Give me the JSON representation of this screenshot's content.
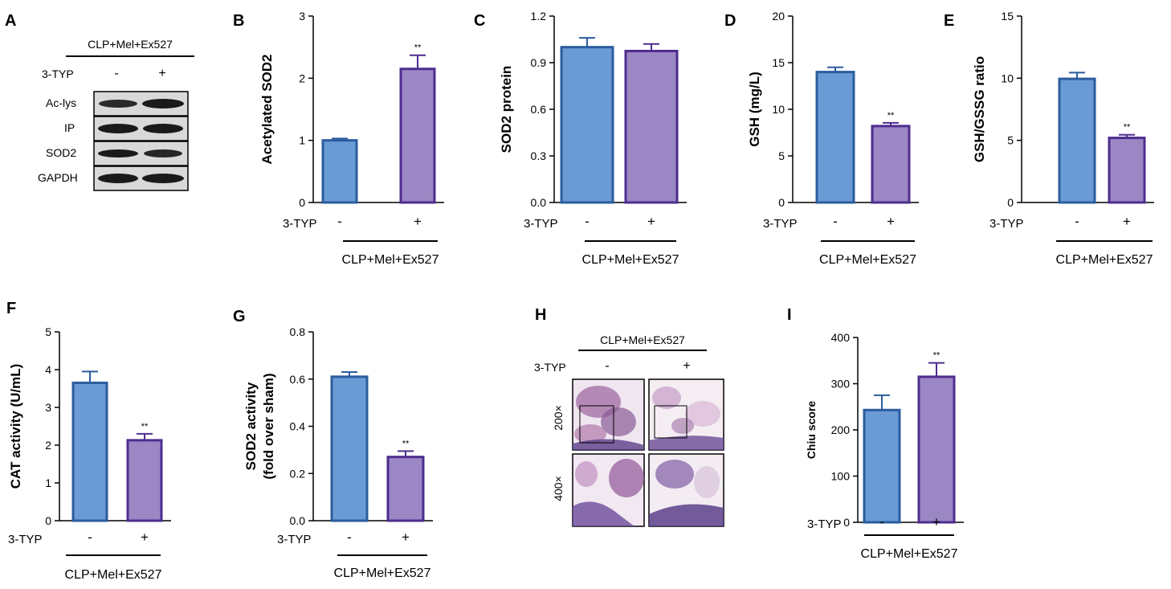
{
  "colors": {
    "bar_minus": "#6a9bd4",
    "bar_minus_edge": "#2b5c9e",
    "bar_plus": "#9b87c4",
    "bar_plus_edge": "#4e2d8f",
    "axis": "#000000"
  },
  "panel_a": {
    "letter": "A",
    "group_label": "CLP+Mel+Ex527",
    "treatment_label": "3-TYP",
    "signs": [
      "-",
      "+"
    ],
    "blots": [
      "Ac-lys",
      "IP",
      "SOD2",
      "GAPDH"
    ]
  },
  "panel_h": {
    "letter": "H",
    "group_label": "CLP+Mel+Ex527",
    "treatment_label": "3-TYP",
    "signs": [
      "-",
      "+"
    ],
    "magnifications": [
      "200×",
      "400×"
    ]
  },
  "chart_data": [
    {
      "id": "B",
      "letter": "B",
      "type": "bar",
      "ylabel": "Acetylated SOD2",
      "ylim": [
        0,
        3
      ],
      "ticks": [
        "0",
        "1",
        "2",
        "3"
      ],
      "treatment_label": "3-TYP",
      "group_label": "CLP+Mel+Ex527",
      "categories": [
        "-",
        "+"
      ],
      "values": [
        1.0,
        2.15
      ],
      "errors": [
        0.03,
        0.22
      ],
      "significance": [
        "",
        "**"
      ]
    },
    {
      "id": "C",
      "letter": "C",
      "type": "bar",
      "ylabel": "SOD2  protein",
      "ylim": [
        0,
        1.2
      ],
      "ticks": [
        "0.0",
        "0.3",
        "0.6",
        "0.9",
        "1.2"
      ],
      "treatment_label": "3-TYP",
      "group_label": "CLP+Mel+Ex527",
      "categories": [
        "-",
        "+"
      ],
      "values": [
        1.0,
        0.975
      ],
      "errors": [
        0.06,
        0.045
      ],
      "significance": [
        "",
        ""
      ]
    },
    {
      "id": "D",
      "letter": "D",
      "type": "bar",
      "ylabel": "GSH (mg/L)",
      "ylim": [
        0,
        20
      ],
      "ticks": [
        "0",
        "5",
        "10",
        "15",
        "20"
      ],
      "treatment_label": "3-TYP",
      "group_label": "CLP+Mel+Ex527",
      "categories": [
        "-",
        "+"
      ],
      "values": [
        14.0,
        8.2
      ],
      "errors": [
        0.5,
        0.35
      ],
      "significance": [
        "",
        "**"
      ]
    },
    {
      "id": "E",
      "letter": "E",
      "type": "bar",
      "ylabel": "GSH/GSSG ratio",
      "ylim": [
        0,
        15
      ],
      "ticks": [
        "0",
        "5",
        "10",
        "15"
      ],
      "treatment_label": "3-TYP",
      "group_label": "CLP+Mel+Ex527",
      "categories": [
        "-",
        "+"
      ],
      "values": [
        9.95,
        5.2
      ],
      "errors": [
        0.5,
        0.25
      ],
      "significance": [
        "",
        "**"
      ]
    },
    {
      "id": "F",
      "letter": "F",
      "type": "bar",
      "ylabel": "CAT activity (U/mL)",
      "ylim": [
        0,
        5
      ],
      "ticks": [
        "0",
        "1",
        "2",
        "3",
        "4",
        "5"
      ],
      "treatment_label": "3-TYP",
      "group_label": "CLP+Mel+Ex527",
      "categories": [
        "-",
        "+"
      ],
      "values": [
        3.65,
        2.13
      ],
      "errors": [
        0.3,
        0.17
      ],
      "significance": [
        "",
        "**"
      ]
    },
    {
      "id": "G",
      "letter": "G",
      "type": "bar",
      "ylabel": "SOD2 activity",
      "ylabel2": "(fold over sham)",
      "ylim": [
        0,
        0.8
      ],
      "ticks": [
        "0.0",
        "0.2",
        "0.4",
        "0.6",
        "0.8"
      ],
      "treatment_label": "3-TYP",
      "group_label": "CLP+Mel+Ex527",
      "categories": [
        "-",
        "+"
      ],
      "values": [
        0.61,
        0.27
      ],
      "errors": [
        0.02,
        0.025
      ],
      "significance": [
        "",
        "**"
      ]
    },
    {
      "id": "I",
      "letter": "I",
      "type": "bar",
      "ylabel": "Chiu score",
      "ylim": [
        0,
        400
      ],
      "ticks": [
        "0",
        "100",
        "200",
        "300",
        "400"
      ],
      "treatment_label": "3-TYP",
      "group_label": "CLP+Mel+Ex527",
      "categories": [
        "-",
        "+"
      ],
      "values": [
        243,
        315
      ],
      "errors": [
        32,
        30
      ],
      "significance": [
        "",
        "**"
      ]
    }
  ]
}
